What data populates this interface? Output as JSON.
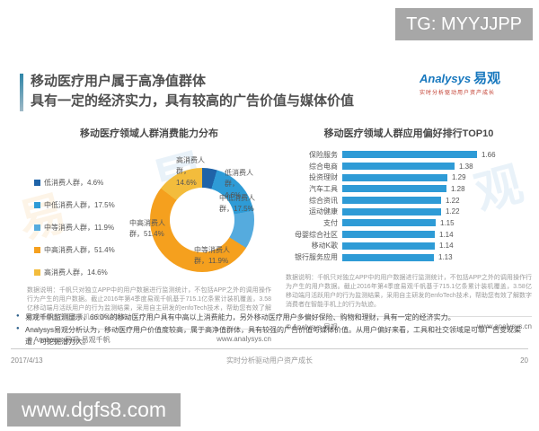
{
  "badges": {
    "top_right": "TG: MYYJJPP",
    "bottom_left": "www.dgfs8.com"
  },
  "header": {
    "title_line1": "移动医疗用户属于高净值群体",
    "title_line2": "具有一定的经济实力，具有较高的广告价值与媒体价值",
    "logo": {
      "brand_en": "Analysys",
      "brand_cn": "易观",
      "tagline": "实时分析驱动用户资产成长"
    }
  },
  "chart_data": [
    {
      "type": "pie",
      "subtype": "donut",
      "title": "移动医疗领域人群消费能力分布",
      "direction": "clockwise-from-top",
      "label_format": "{label}，{value}%",
      "segments": [
        {
          "label": "低消费人群",
          "value": 4.6,
          "color": "#1F63A8"
        },
        {
          "label": "中低消费人群",
          "value": 17.5,
          "color": "#2E9BD6"
        },
        {
          "label": "中等消费人群",
          "value": 11.9,
          "color": "#55ABDE"
        },
        {
          "label": "中高消费人群",
          "value": 51.4,
          "color": "#F5A01E"
        },
        {
          "label": "高消费人群",
          "value": 14.6,
          "color": "#F3BC3C"
        }
      ]
    },
    {
      "type": "bar",
      "orientation": "horizontal",
      "title": "移动医疗领域人群应用偏好排行TOP10",
      "categories": [
        "保险服务",
        "综合电商",
        "投资理财",
        "汽车工具",
        "综合资讯",
        "运动健康",
        "支付",
        "母婴综合社区",
        "移动K歌",
        "银行服务应用"
      ],
      "values": [
        1.66,
        1.38,
        1.29,
        1.28,
        1.22,
        1.22,
        1.15,
        1.14,
        1.14,
        1.13
      ],
      "bar_color": "#2E9BD6",
      "xlim": [
        0,
        1.8
      ],
      "value_labels": true,
      "grid": false,
      "legend": "none"
    }
  ],
  "panels": {
    "left": {
      "note": "数据说明：千帆只对独立APP中的用户数据进行监测统计，不包括APP之外的调用操作行为产生的用户数据。截止2016年第4季度易观千帆基于715.1亿条累计装机覆盖，3.58亿移动端月活跃用户的行为监测结果，采用自主研发的enfoTech技术，帮助您有效了解数字消费者在智能手机上的行为轨迹。",
      "copyright": "© Analysys 易观·易观千帆",
      "site": "www.analysys.cn"
    },
    "right": {
      "note": "数据说明：千帆只对独立APP中的用户数据进行监测统计，不包括APP之外的调用操作行为产生的用户数据。截止2016年第4季度易观千帆基于715.1亿条累计装机覆盖，3.58亿移动端月活跃用户的行为监测结果，采用自主研发的enfoTech技术，帮助您有效了解数字消费者在智能手机上的行为轨迹。",
      "copyright": "© Analysys 易观",
      "site": "www.analysys.cn"
    }
  },
  "bullets": [
    "易观千帆监测显示，66.0%的移动医疗用户具有中高以上消费能力，另外移动医疗用户多偏好保险、购物和理财，具有一定的经济实力。",
    "Analysys易观分析认为，移动医疗用户价值度较高，属于高净值群体，具有较强的广告价值与媒体价值。从用户偏好来看，工具和社交领域是可靠广告变现渠道，可挖掘潜力大。"
  ],
  "footer": {
    "date": "2017/4/13",
    "center": "实时分析驱动用户资产成长",
    "page": "20"
  },
  "watermark": {
    "chars": [
      "易",
      "观"
    ]
  }
}
